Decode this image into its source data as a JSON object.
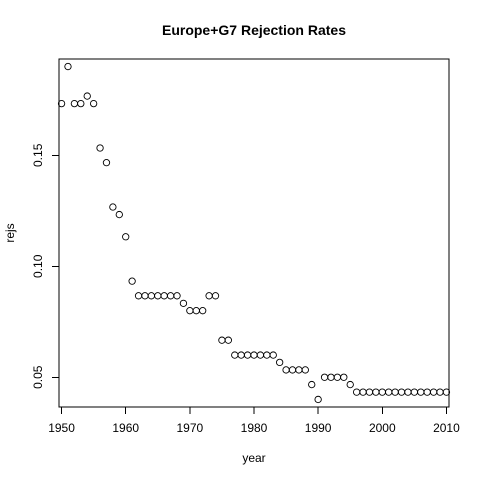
{
  "chart_data": {
    "type": "scatter",
    "title": "Europe+G7 Rejection Rates",
    "xlabel": "year",
    "ylabel": "rejs",
    "xlim": [
      1949.6,
      2010.4
    ],
    "ylim": [
      0.0366,
      0.1934
    ],
    "x_ticks": [
      1950,
      1960,
      1970,
      1980,
      1990,
      2000,
      2010
    ],
    "y_ticks": [
      0.05,
      0.1,
      0.15
    ],
    "y_tick_labels": [
      "0.05",
      "0.10",
      "0.15"
    ],
    "grid": false,
    "legend": "none",
    "x": [
      1950,
      1951,
      1952,
      1953,
      1954,
      1955,
      1956,
      1957,
      1958,
      1959,
      1960,
      1961,
      1962,
      1963,
      1964,
      1965,
      1966,
      1967,
      1968,
      1969,
      1970,
      1971,
      1972,
      1973,
      1974,
      1975,
      1976,
      1977,
      1978,
      1979,
      1980,
      1981,
      1982,
      1983,
      1984,
      1985,
      1986,
      1987,
      1988,
      1989,
      1990,
      1991,
      1992,
      1993,
      1994,
      1995,
      1996,
      1997,
      1998,
      1999,
      2000,
      2001,
      2002,
      2003,
      2004,
      2005,
      2006,
      2007,
      2008,
      2009,
      2010
    ],
    "y": [
      0.1733,
      0.19,
      0.1733,
      0.1733,
      0.1767,
      0.1733,
      0.1533,
      0.1467,
      0.1267,
      0.1233,
      0.1133,
      0.0933,
      0.0867,
      0.0867,
      0.0867,
      0.0867,
      0.0867,
      0.0867,
      0.0867,
      0.0833,
      0.08,
      0.08,
      0.08,
      0.0867,
      0.0867,
      0.0667,
      0.0667,
      0.06,
      0.06,
      0.06,
      0.06,
      0.06,
      0.06,
      0.06,
      0.0567,
      0.0533,
      0.0533,
      0.0533,
      0.0533,
      0.0467,
      0.04,
      0.05,
      0.05,
      0.05,
      0.05,
      0.0467,
      0.0433,
      0.0433,
      0.0433,
      0.0433,
      0.0433,
      0.0433,
      0.0433,
      0.0433,
      0.0433,
      0.0433,
      0.0433,
      0.0433,
      0.0433,
      0.0433,
      0.0433
    ]
  }
}
